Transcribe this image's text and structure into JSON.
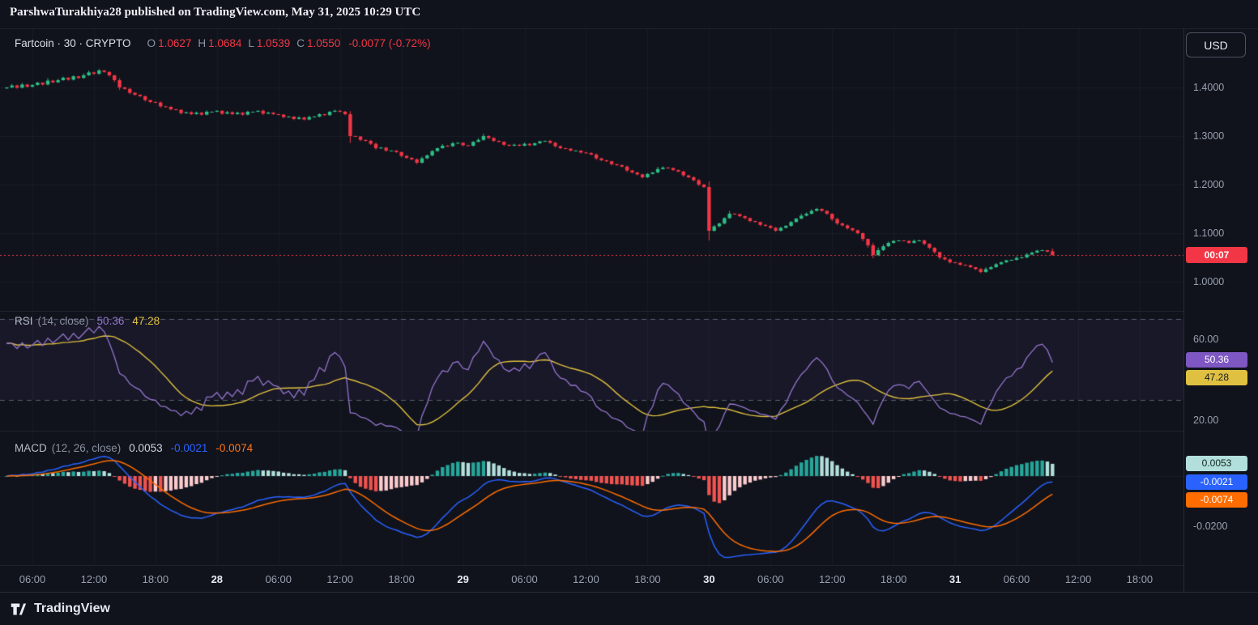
{
  "header": {
    "publish_line": "ParshwaTurakhiya28 published on TradingView.com, May 31, 2025 10:29 UTC"
  },
  "toolbar": {
    "currency_button": "USD"
  },
  "legend": {
    "symbol_line": "Fartcoin · 30 · CRYPTO",
    "o_label": "O",
    "o": "1.0627",
    "h_label": "H",
    "h": "1.0684",
    "l_label": "L",
    "l": "1.0539",
    "c_label": "C",
    "c": "1.0550",
    "change": "-0.0077 (-0.72%)"
  },
  "price_scale": {
    "labels": [
      "1.4000",
      "1.3000",
      "1.2000",
      "1.1000",
      "1.0000"
    ],
    "countdown": "00:07"
  },
  "rsi": {
    "title": "RSI",
    "params": "(14, close)",
    "value": "50.36",
    "ma_value": "47.28",
    "scale_labels": [
      "60.00",
      "20.00"
    ]
  },
  "macd": {
    "title": "MACD",
    "params": "(12, 26, close)",
    "hist_value": "0.0053",
    "macd_value": "-0.0021",
    "signal_value": "-0.0074",
    "scale_label": "-0.0200"
  },
  "time_axis_note": "labels live in chart_data.x_axis",
  "footer": {
    "brand": "TradingView"
  },
  "colors": {
    "bg": "#10131c",
    "up": "#2ebd85",
    "down": "#f23645",
    "rsi_line": "#9575cd",
    "rsi_ma": "#e0c040",
    "macd_line": "#2962ff",
    "signal_line": "#ff6d00",
    "hist_above": "#26a69a",
    "hist_above_weak": "#b2dfdb",
    "hist_below": "#ef5350",
    "hist_below_weak": "#fccbcd",
    "badge_countdown": "#f23645",
    "badge_rsi": "#7e57c2",
    "badge_rsi_ma": "#e0c040",
    "badge_hist": "#b2dfdb",
    "badge_macd": "#2962ff",
    "badge_signal": "#ff6d00",
    "text": "#d6d9e0",
    "muted": "#87909f"
  },
  "chart_data": {
    "type": "candlestick",
    "symbol": "Fartcoin",
    "interval": "30",
    "exchange": "CRYPTO",
    "x_axis": {
      "labels": [
        "06:00",
        "12:00",
        "18:00",
        "28",
        "06:00",
        "12:00",
        "18:00",
        "29",
        "06:00",
        "12:00",
        "18:00",
        "30",
        "06:00",
        "12:00",
        "18:00",
        "31",
        "06:00",
        "12:00",
        "18:00"
      ],
      "bold_indices": [
        3,
        7,
        11,
        15
      ]
    },
    "y_axis": {
      "ticks": [
        1.4,
        1.3,
        1.2,
        1.1,
        1.0
      ],
      "tick_labels": [
        "1.4000",
        "1.3000",
        "1.2000",
        "1.1000",
        "1.0000"
      ]
    },
    "first_open": 1.398,
    "closes": [
      1.4,
      1.404,
      1.3995,
      1.406,
      1.4015,
      1.405,
      1.41,
      1.406,
      1.414,
      1.4105,
      1.415,
      1.42,
      1.416,
      1.423,
      1.4195,
      1.425,
      1.431,
      1.428,
      1.435,
      1.432,
      1.425,
      1.415,
      1.4,
      1.397,
      1.389,
      1.385,
      1.382,
      1.374,
      1.37,
      1.369,
      1.361,
      1.36,
      1.355,
      1.354,
      1.347,
      1.349,
      1.345,
      1.348,
      1.344,
      1.35,
      1.35,
      1.352,
      1.346,
      1.349,
      1.345,
      1.348,
      1.344,
      1.35,
      1.35,
      1.352,
      1.346,
      1.348,
      1.345,
      1.344,
      1.339,
      1.34,
      1.335,
      1.338,
      1.334,
      1.339,
      1.34,
      1.345,
      1.343,
      1.35,
      1.352,
      1.35,
      1.345,
      1.3,
      1.299,
      1.292,
      1.29,
      1.284,
      1.275,
      1.276,
      1.27,
      1.27,
      1.267,
      1.259,
      1.255,
      1.252,
      1.245,
      1.254,
      1.26,
      1.269,
      1.275,
      1.28,
      1.279,
      1.285,
      1.286,
      1.281,
      1.28,
      1.288,
      1.292,
      1.3,
      1.296,
      1.29,
      1.288,
      1.282,
      1.28,
      1.282,
      1.28,
      1.284,
      1.281,
      1.285,
      1.289,
      1.29,
      1.286,
      1.279,
      1.275,
      1.274,
      1.27,
      1.27,
      1.266,
      1.265,
      1.262,
      1.254,
      1.25,
      1.248,
      1.242,
      1.24,
      1.237,
      1.229,
      1.225,
      1.221,
      1.215,
      1.222,
      1.225,
      1.232,
      1.235,
      1.234,
      1.23,
      1.227,
      1.219,
      1.215,
      1.209,
      1.2,
      1.195,
      1.105,
      1.114,
      1.12,
      1.131,
      1.14,
      1.139,
      1.135,
      1.131,
      1.125,
      1.123,
      1.117,
      1.115,
      1.111,
      1.105,
      1.111,
      1.115,
      1.123,
      1.13,
      1.136,
      1.14,
      1.146,
      1.15,
      1.146,
      1.14,
      1.129,
      1.12,
      1.116,
      1.11,
      1.106,
      1.1,
      1.088,
      1.075,
      1.055,
      1.065,
      1.073,
      1.08,
      1.084,
      1.085,
      1.084,
      1.08,
      1.084,
      1.085,
      1.078,
      1.07,
      1.061,
      1.05,
      1.046,
      1.04,
      1.039,
      1.035,
      1.034,
      1.03,
      1.026,
      1.02,
      1.026,
      1.03,
      1.036,
      1.04,
      1.044,
      1.045,
      1.049,
      1.05,
      1.056,
      1.06,
      1.064,
      1.065,
      1.062,
      1.055
    ],
    "last_bar": {
      "open": 1.0627,
      "high": 1.0684,
      "low": 1.0539,
      "close": 1.055
    },
    "last_price": 1.055,
    "change": -0.0077,
    "change_pct": -0.72,
    "countdown": "00:07",
    "indicators": {
      "rsi": {
        "period": 14,
        "ma_period": 14,
        "value": 50.36,
        "ma_value": 47.28,
        "bands": [
          70,
          30
        ],
        "scale_ticks": [
          60,
          20
        ],
        "scale_tick_labels": [
          "60.00",
          "20.00"
        ]
      },
      "macd": {
        "fast": 12,
        "slow": 26,
        "signal_period": 9,
        "hist_value": 0.0053,
        "macd_value": -0.0021,
        "signal_value": -0.0074,
        "scale_ticks": [
          -0.02
        ],
        "scale_tick_labels": [
          "-0.0200"
        ]
      }
    }
  }
}
